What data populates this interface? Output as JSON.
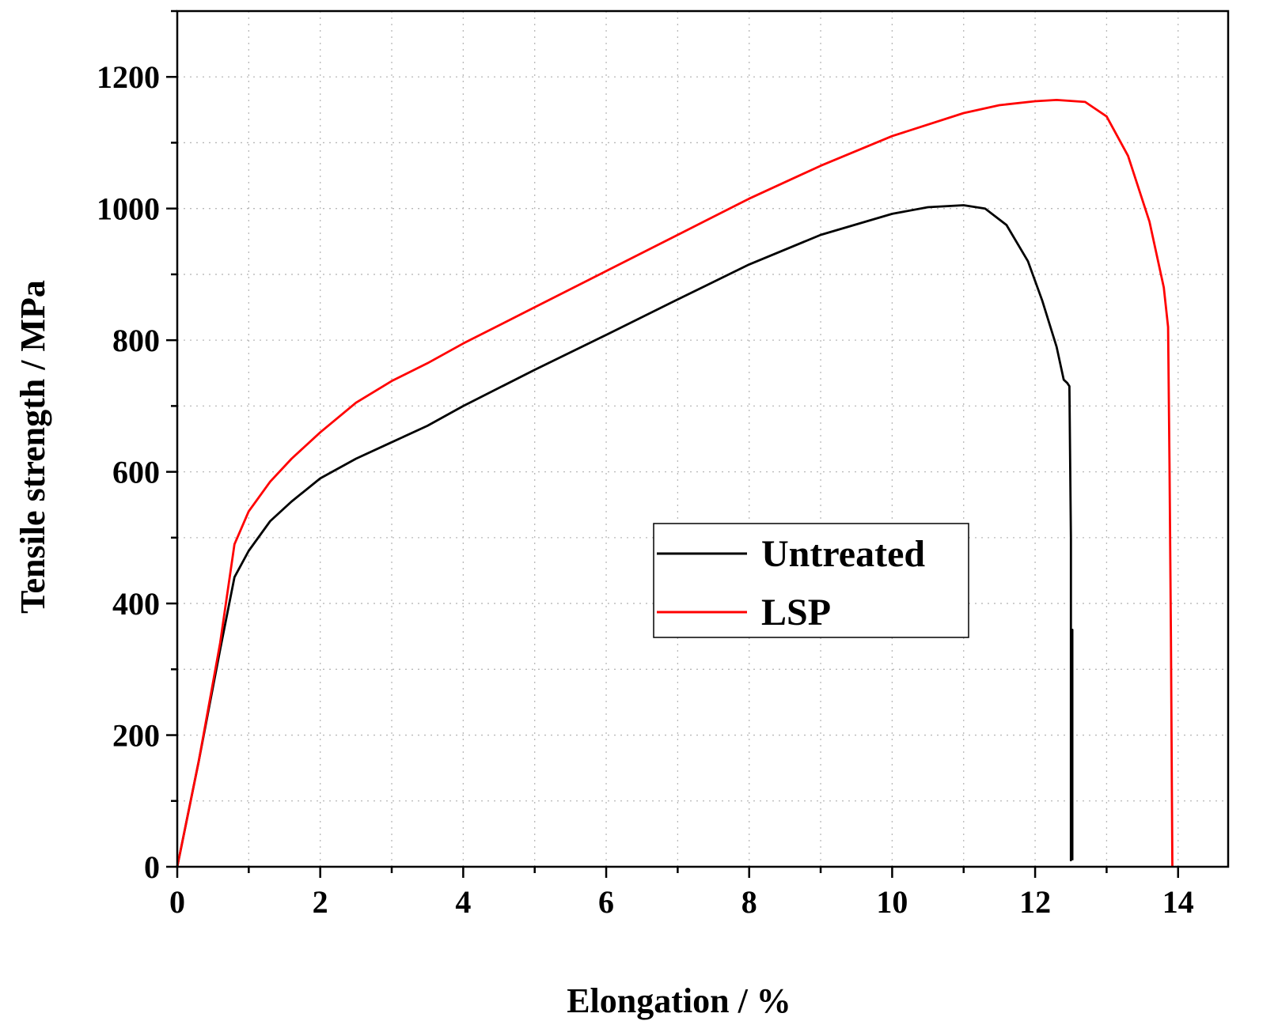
{
  "chart_data": {
    "type": "line",
    "title": "",
    "xlabel": "Elongation / %",
    "ylabel": "Tensile strength / MPa",
    "xlim": [
      0,
      14.7
    ],
    "ylim": [
      0,
      1300
    ],
    "x_ticks": [
      0,
      2,
      4,
      6,
      8,
      10,
      12,
      14
    ],
    "y_ticks": [
      0,
      200,
      400,
      600,
      800,
      1000,
      1200
    ],
    "x_minor_step": 1,
    "y_minor_step": 100,
    "grid": true,
    "legend_position": "center-right",
    "series": [
      {
        "name": "Untreated",
        "color": "#000000",
        "x": [
          0,
          0.3,
          0.6,
          0.8,
          1.0,
          1.3,
          1.6,
          2.0,
          2.5,
          3.0,
          3.5,
          4.0,
          5.0,
          6.0,
          7.0,
          8.0,
          9.0,
          10.0,
          10.5,
          11.0,
          11.3,
          11.6,
          11.9,
          12.1,
          12.3,
          12.4,
          12.45,
          12.48,
          12.5,
          12.5,
          12.52,
          12.52
        ],
        "y": [
          0,
          160,
          330,
          440,
          480,
          525,
          555,
          590,
          620,
          645,
          670,
          700,
          755,
          808,
          862,
          915,
          960,
          992,
          1002,
          1005,
          1000,
          975,
          920,
          860,
          790,
          740,
          735,
          730,
          500,
          10,
          360,
          10
        ]
      },
      {
        "name": "LSP",
        "color": "#ff0000",
        "x": [
          0,
          0.3,
          0.6,
          0.8,
          1.0,
          1.3,
          1.6,
          2.0,
          2.5,
          3.0,
          3.5,
          4.0,
          5.0,
          6.0,
          7.0,
          8.0,
          9.0,
          10.0,
          11.0,
          11.5,
          12.0,
          12.3,
          12.7,
          13.0,
          13.3,
          13.6,
          13.8,
          13.86,
          13.88,
          13.9,
          13.92
        ],
        "y": [
          0,
          160,
          340,
          490,
          540,
          585,
          620,
          660,
          705,
          738,
          765,
          795,
          850,
          905,
          960,
          1015,
          1065,
          1110,
          1145,
          1157,
          1163,
          1165,
          1162,
          1140,
          1080,
          980,
          880,
          820,
          610,
          350,
          0
        ]
      }
    ]
  }
}
